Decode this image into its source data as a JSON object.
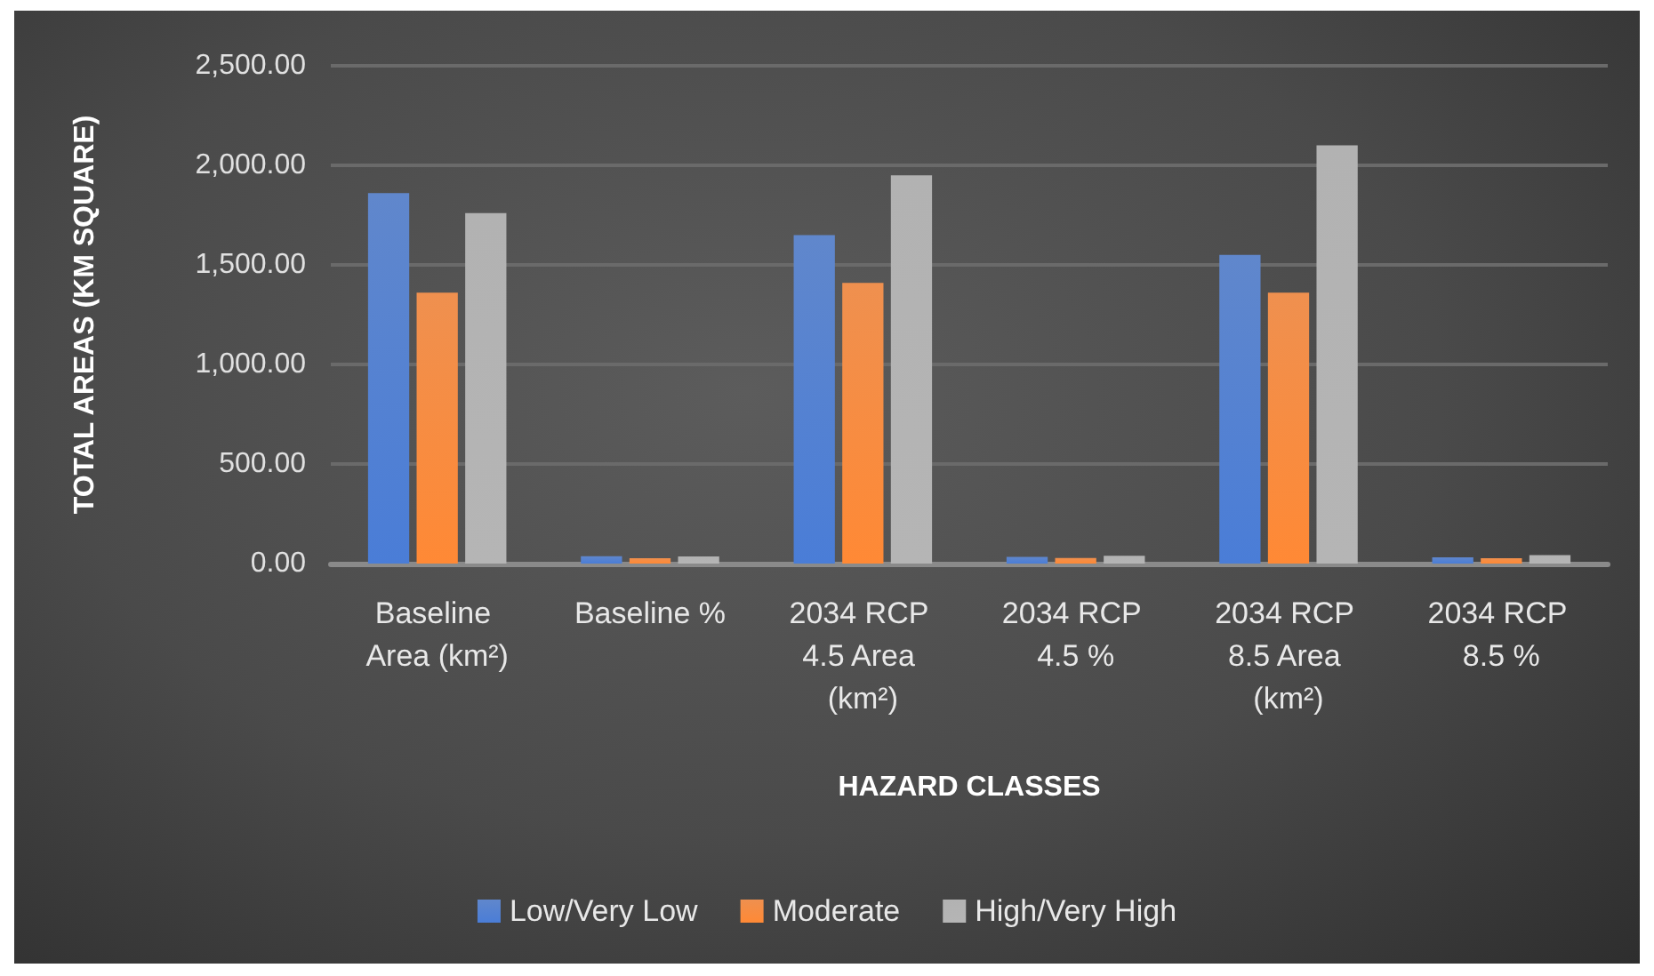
{
  "chart_data": {
    "type": "bar",
    "xlabel": "HAZARD CLASSES",
    "ylabel": "TOTAL AREAS (KM SQUARE)",
    "categories": [
      "Baseline Area (km²)",
      "Baseline %",
      "2034 RCP 4.5 Area (km²)",
      "2034 RCP 4.5 %",
      "2034 RCP 8.5 Area (km²)",
      "2034 RCP 8.5 %"
    ],
    "series": [
      {
        "name": "Low/Very Low",
        "color": "#4472c4",
        "values": [
          1860,
          37,
          1650,
          33,
          1550,
          31
        ]
      },
      {
        "name": "Moderate",
        "color": "#ed7d31",
        "values": [
          1360,
          27,
          1410,
          28,
          1360,
          27
        ]
      },
      {
        "name": "High/Very High",
        "color": "#a5a5a5",
        "values": [
          1760,
          36,
          1950,
          39,
          2100,
          42
        ]
      }
    ],
    "ylim": [
      0,
      2500
    ],
    "yticks": [
      {
        "value": 0,
        "label": "0.00"
      },
      {
        "value": 500,
        "label": "500.00"
      },
      {
        "value": 1000,
        "label": "1,000.00"
      },
      {
        "value": 1500,
        "label": "1,500.00"
      },
      {
        "value": 2000,
        "label": "2,000.00"
      },
      {
        "value": 2500,
        "label": "2,500.00"
      }
    ],
    "grid": "y",
    "legend": "bottom"
  }
}
